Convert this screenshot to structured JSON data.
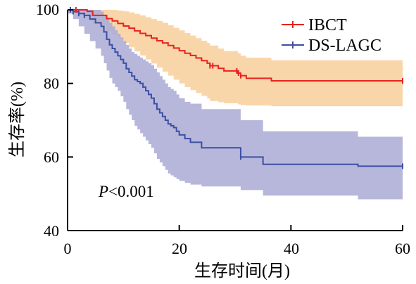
{
  "chart_data": {
    "type": "line",
    "subtype": "kaplan-meier",
    "xlabel": "生存时间(月)",
    "ylabel": "生存率(%)",
    "xlim": [
      0,
      60
    ],
    "ylim": [
      40,
      100
    ],
    "xticks": [
      "0",
      "20",
      "40",
      "60"
    ],
    "yticks": [
      "40",
      "60",
      "80",
      "100"
    ],
    "grid": false,
    "legend_position": "top-right",
    "annotation": {
      "italic": "P",
      "rest": "<0.001"
    },
    "series": [
      {
        "name": "IBCT",
        "color": "#e8221f",
        "band_color": "#f8cf9a",
        "x": [
          0,
          3.5,
          4.5,
          7,
          8,
          9,
          10,
          11,
          12,
          13,
          14,
          15,
          16,
          17,
          18,
          19,
          20,
          21,
          22,
          23,
          24,
          25,
          25.5,
          27,
          28,
          30.5,
          31,
          32,
          36.5,
          60
        ],
        "y": [
          100,
          99.6,
          98.5,
          97.6,
          97.0,
          96.3,
          95.6,
          95.0,
          94.3,
          93.6,
          93.0,
          92.3,
          91.6,
          91.0,
          90.3,
          89.6,
          88.9,
          88.2,
          87.6,
          86.9,
          86.2,
          85.5,
          84.8,
          84.1,
          83.4,
          82.8,
          82.1,
          81.4,
          80.7,
          80.7
        ],
        "lower": [
          100,
          98.5,
          96.0,
          94.3,
          93.2,
          92.1,
          91.0,
          89.8,
          88.7,
          87.6,
          86.5,
          85.4,
          84.3,
          83.2,
          82.1,
          81.0,
          80.0,
          79.0,
          78.2,
          77.4,
          76.6,
          75.9,
          75.2,
          74.9,
          74.6,
          74.3,
          74.1,
          74.0,
          73.8,
          73.5
        ],
        "upper": [
          100,
          100,
          100,
          100,
          100,
          99.8,
          99.6,
          99.3,
          98.9,
          98.5,
          98.0,
          97.5,
          97.0,
          96.5,
          95.8,
          95.1,
          94.4,
          93.7,
          93.0,
          92.3,
          91.6,
          91.0,
          90.3,
          89.5,
          88.8,
          88.2,
          87.5,
          87.0,
          86.3,
          86.3
        ],
        "censor_x": [
          1.5,
          25.5,
          26,
          30.3,
          30.6,
          31,
          60
        ]
      },
      {
        "name": "DS-LAGC",
        "color": "#3d4fa3",
        "band_color": "#aaaad6",
        "x": [
          0,
          1,
          2,
          3,
          4,
          5,
          6,
          6.5,
          7,
          7.5,
          8,
          8.5,
          9,
          9.5,
          10,
          10.5,
          11,
          11.5,
          12,
          12.5,
          13,
          13.5,
          14,
          14.5,
          15,
          15.5,
          16,
          16.5,
          17,
          17.5,
          18,
          18.5,
          19,
          19.5,
          20,
          21,
          22,
          24,
          31,
          35,
          52,
          60
        ],
        "y": [
          100,
          99.5,
          99.0,
          98.5,
          97.5,
          96.5,
          95.5,
          94.0,
          92.0,
          90.5,
          89.5,
          88.5,
          87.5,
          86.5,
          85.5,
          84.0,
          83.0,
          82.0,
          81.0,
          80.5,
          80.0,
          79.0,
          78.0,
          77.0,
          76.0,
          74.5,
          73.0,
          72.0,
          71.0,
          70.0,
          69.0,
          68.5,
          68.0,
          67.0,
          66.0,
          65.0,
          64.0,
          62.5,
          60.0,
          58.0,
          57.5,
          57.5
        ],
        "lower": [
          99.0,
          97.5,
          95.5,
          93.5,
          91.5,
          89.5,
          87.5,
          85.5,
          83.5,
          81.5,
          80.0,
          79.0,
          78.0,
          76.5,
          75.0,
          73.0,
          71.5,
          70.0,
          68.5,
          67.5,
          66.5,
          65.5,
          64.5,
          63.5,
          62.5,
          61.0,
          59.5,
          58.5,
          57.5,
          56.5,
          55.5,
          55.0,
          54.5,
          54.0,
          53.5,
          53.0,
          52.5,
          52.0,
          51.0,
          49.5,
          48.5,
          48.0
        ],
        "upper": [
          100,
          100,
          100,
          100,
          100,
          100,
          99.5,
          98.5,
          97.5,
          96.5,
          95.5,
          94.5,
          93.5,
          92.5,
          91.5,
          90.5,
          89.5,
          88.5,
          88.0,
          87.5,
          87.0,
          86.5,
          86.0,
          85.5,
          85.0,
          84.0,
          83.0,
          82.0,
          81.0,
          80.0,
          79.0,
          78.5,
          78.0,
          77.0,
          76.0,
          75.0,
          74.5,
          73.0,
          70.0,
          67.0,
          65.5,
          65.5
        ],
        "censor_x": [
          0.5,
          1,
          2,
          3,
          31,
          60
        ]
      }
    ]
  }
}
